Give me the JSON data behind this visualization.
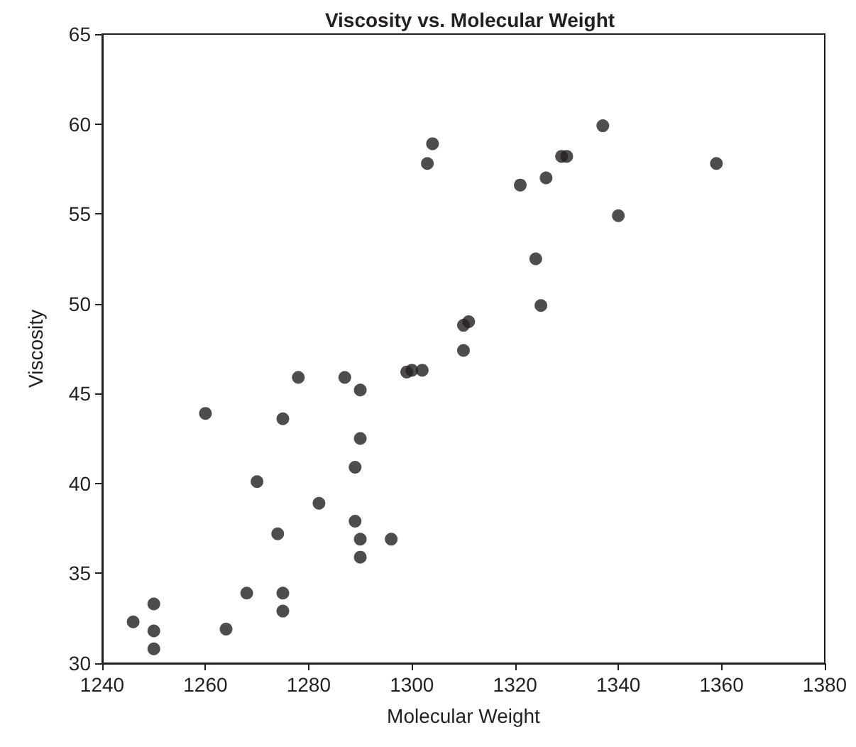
{
  "chart_data": {
    "type": "scatter",
    "title": "Viscosity vs. Molecular Weight",
    "xlabel": "Molecular Weight",
    "ylabel": "Viscosity",
    "x": [
      1246,
      1250,
      1250,
      1250,
      1264,
      1268,
      1275,
      1275,
      1274,
      1260,
      1270,
      1275,
      1278,
      1282,
      1287,
      1290,
      1290,
      1289,
      1289,
      1290,
      1290,
      1296,
      1299,
      1300,
      1302,
      1303,
      1304,
      1310,
      1310,
      1311,
      1321,
      1324,
      1325,
      1326,
      1329,
      1330,
      1337,
      1340,
      1359
    ],
    "values": [
      32.3,
      33.3,
      31.8,
      30.8,
      31.9,
      33.9,
      33.9,
      32.9,
      37.2,
      43.9,
      40.1,
      43.6,
      45.9,
      38.9,
      45.9,
      45.2,
      42.5,
      40.9,
      37.9,
      36.9,
      35.9,
      36.9,
      46.2,
      46.3,
      46.3,
      57.8,
      58.9,
      47.4,
      48.8,
      49.0,
      56.6,
      52.5,
      49.9,
      57.0,
      58.2,
      58.2,
      59.9,
      54.9,
      57.8
    ],
    "color": "#231f20",
    "marker": "circle",
    "xlim": [
      1240,
      1380
    ],
    "xticks": [
      1240,
      1260,
      1280,
      1300,
      1320,
      1340,
      1360,
      1380
    ],
    "ylim": [
      30,
      65
    ],
    "yticks": [
      30,
      35,
      40,
      45,
      50,
      55,
      60,
      65
    ]
  }
}
